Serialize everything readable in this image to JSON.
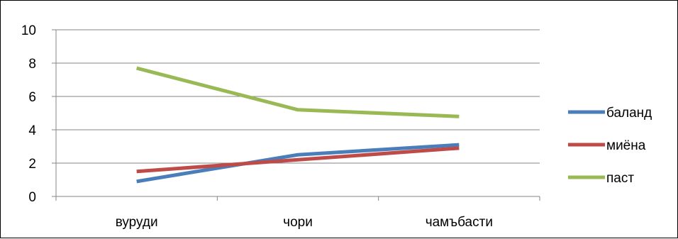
{
  "chart_data": {
    "type": "line",
    "categories": [
      "вуруди",
      "чори",
      "чамъбасти"
    ],
    "series": [
      {
        "name": "баланд",
        "values": [
          0.9,
          2.5,
          3.1
        ],
        "color": "#4a7ebb"
      },
      {
        "name": "миёна",
        "values": [
          1.5,
          2.2,
          2.9
        ],
        "color": "#be4b48"
      },
      {
        "name": "паст",
        "values": [
          7.7,
          5.2,
          4.8
        ],
        "color": "#98b954"
      }
    ],
    "ylim": [
      0,
      10
    ],
    "yticks": [
      "0",
      "2",
      "4",
      "6",
      "8",
      "10"
    ],
    "grid": true,
    "legend": "right"
  }
}
